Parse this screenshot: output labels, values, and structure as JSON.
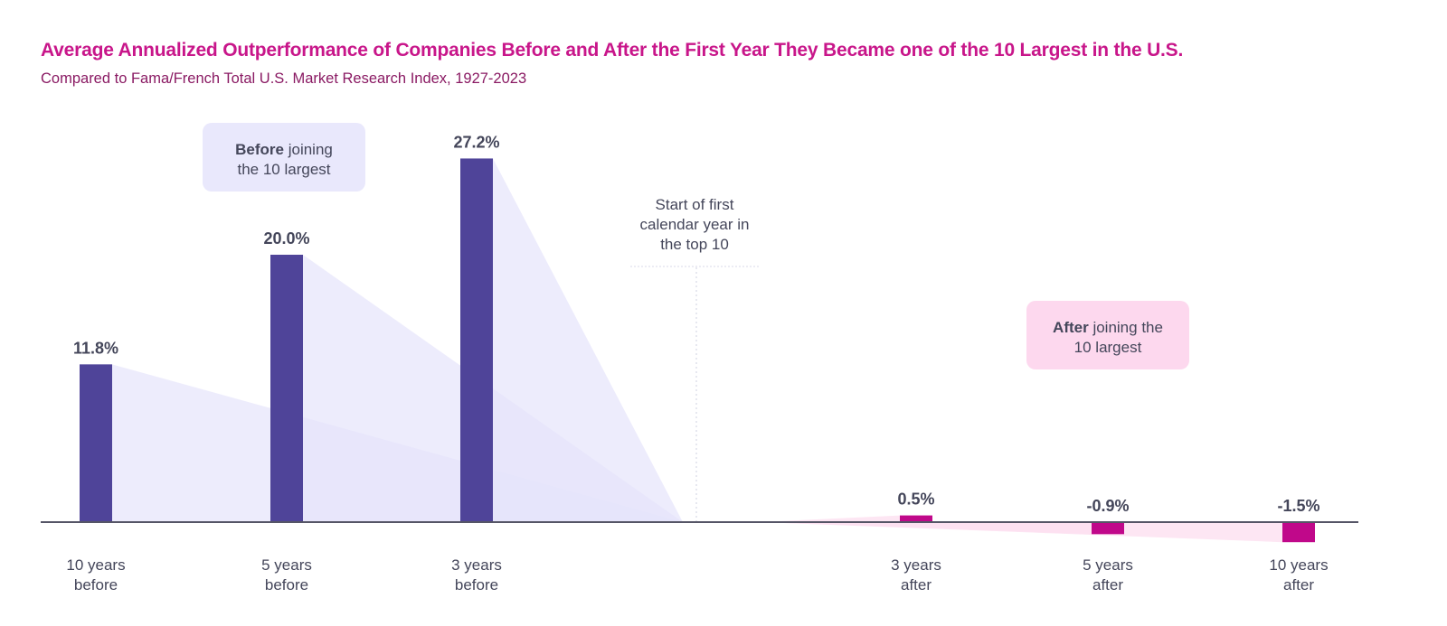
{
  "chart_data": {
    "type": "bar",
    "title": "Average Annualized Outperformance of Companies Before and After the First Year They Became one of the 10 Largest in the U.S.",
    "subtitle": "Compared to Fama/French Total U.S. Market Research Index, 1927-2023",
    "categories": [
      [
        "10 years",
        "before"
      ],
      [
        "5 years",
        "before"
      ],
      [
        "3 years",
        "before"
      ],
      [
        "3 years",
        "after"
      ],
      [
        "5 years",
        "after"
      ],
      [
        "10 years",
        "after"
      ]
    ],
    "values": [
      11.8,
      20.0,
      27.2,
      0.5,
      -0.9,
      -1.5
    ],
    "data_labels": [
      "11.8%",
      "20.0%",
      "27.2%",
      "0.5%",
      "-0.9%",
      "-1.5%"
    ],
    "unit": "%",
    "grid": false,
    "annotations": {
      "before_box": {
        "bold": "Before",
        "rest": [
          " joining",
          "the 10 largest"
        ]
      },
      "after_box": {
        "bold": "After",
        "rest": [
          " joining the",
          "10 largest"
        ]
      },
      "start_marker": [
        "Start of first",
        "calendar year in",
        "the top 10"
      ]
    },
    "colors": {
      "before": "#4f4499",
      "after": "#c0088a",
      "before_fan": "#e6e4fb",
      "after_fan": "#fde0f0",
      "before_box": "#e9e8fc",
      "after_box": "#fdd8ee",
      "axis": "#555566",
      "text": "#44465a",
      "title": "#c8168a",
      "subtitle": "#8a1a63"
    }
  }
}
